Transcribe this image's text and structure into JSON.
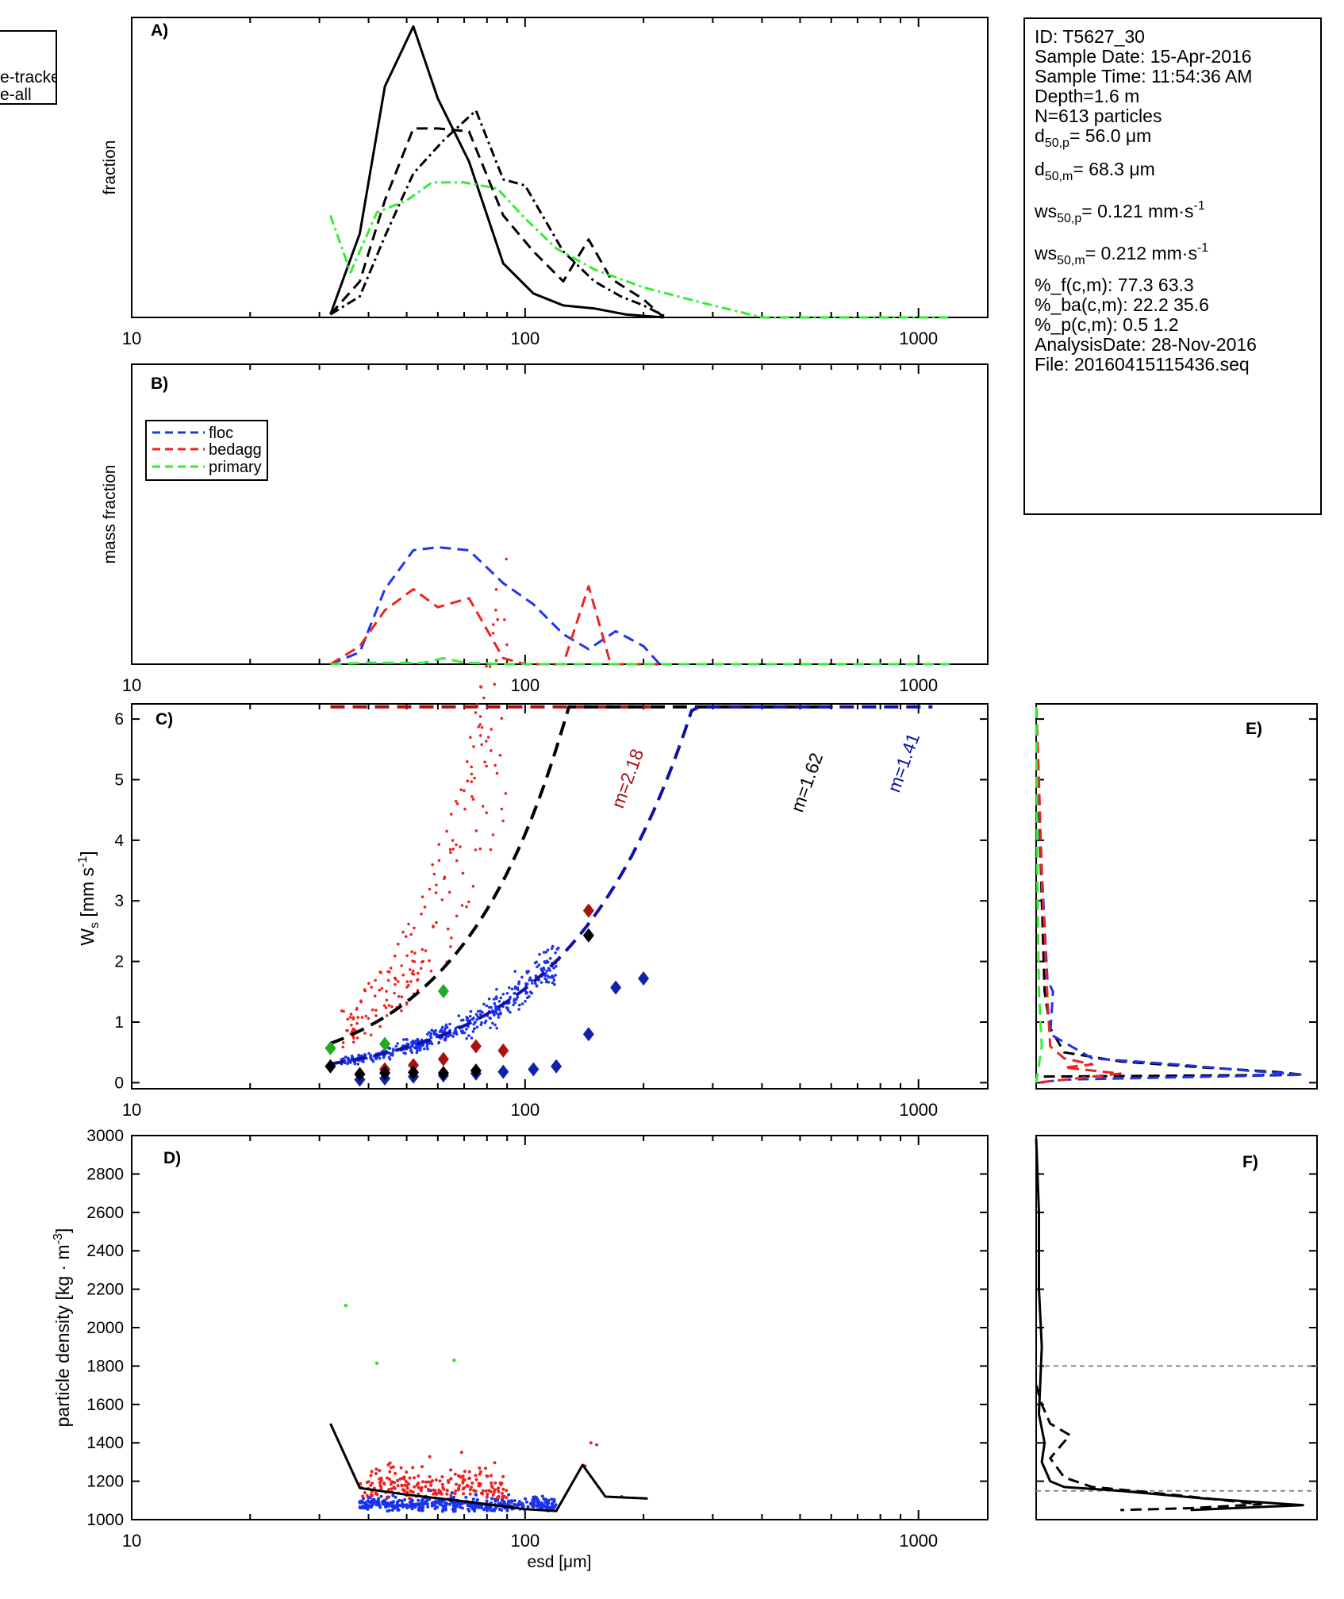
{
  "figure": {
    "top_legend": [
      "e-tracked",
      "e-all"
    ],
    "info": {
      "id": "ID: T5627_30",
      "sample_date": "Sample Date: 15-Apr-2016",
      "sample_time": "Sample Time: 11:54:36 AM",
      "depth": "Depth=1.6 m",
      "n": "N=613 particles",
      "d50p_label": "d",
      "d50p_sub": "50,p",
      "d50p_value": "=  56.0 μm",
      "d50m_label": "d",
      "d50m_sub": "50,m",
      "d50m_value": "=  68.3 μm",
      "ws50p_label": "ws",
      "ws50p_sub": "50,p",
      "ws50p_value": "= 0.121 mm·s",
      "ws50p_sup": "-1",
      "ws50m_label": "ws",
      "ws50m_sub": "50,m",
      "ws50m_value": "= 0.212 mm·s",
      "ws50m_sup": "-1",
      "pf": "%_f(c,m): 77.3 63.3",
      "pba": "%_ba(c,m): 22.2 35.6",
      "pp": "%_p(c,m): 0.5 1.2",
      "analysis_date": "AnalysisDate: 28-Nov-2016",
      "file": "File: 20160415115436.seq"
    }
  },
  "chart_data": [
    {
      "panel": "A)",
      "type": "line",
      "xscale": "log",
      "xlim": [
        10,
        1500
      ],
      "ylim": [
        0,
        1
      ],
      "xticklabels": [
        "10",
        "100",
        "1000"
      ],
      "xlabel": "",
      "ylabel": "fraction",
      "series": [
        {
          "name": "solid",
          "color": "#000000",
          "dash": "solid",
          "x": [
            32,
            38,
            44,
            52,
            60,
            72,
            88,
            105,
            125,
            150,
            180,
            225
          ],
          "y": [
            0.01,
            0.28,
            0.77,
            0.97,
            0.73,
            0.52,
            0.18,
            0.08,
            0.04,
            0.03,
            0.01,
            0.0
          ]
        },
        {
          "name": "dashed",
          "color": "#000000",
          "dash": "dashed",
          "x": [
            32,
            38,
            44,
            52,
            60,
            72,
            88,
            105,
            125,
            145,
            165,
            200,
            225
          ],
          "y": [
            0.01,
            0.12,
            0.39,
            0.63,
            0.63,
            0.62,
            0.34,
            0.22,
            0.12,
            0.26,
            0.13,
            0.06,
            0.0
          ]
        },
        {
          "name": "dashdot",
          "color": "#000000",
          "dash": "dashdot",
          "x": [
            32,
            38,
            44,
            52,
            62,
            75,
            88,
            100,
            125,
            150,
            175,
            200,
            230
          ],
          "y": [
            0.01,
            0.07,
            0.27,
            0.48,
            0.59,
            0.69,
            0.46,
            0.44,
            0.22,
            0.12,
            0.07,
            0.04,
            0.0
          ]
        },
        {
          "name": "primary",
          "color": "#33ee33",
          "dash": "dashdot",
          "x": [
            32,
            36,
            42,
            50,
            58,
            70,
            85,
            100,
            120,
            150,
            200,
            280,
            400,
            1200
          ],
          "y": [
            0.34,
            0.15,
            0.35,
            0.39,
            0.45,
            0.45,
            0.43,
            0.33,
            0.23,
            0.16,
            0.1,
            0.05,
            0.0,
            0.0
          ]
        }
      ]
    },
    {
      "panel": "B)",
      "type": "line",
      "xscale": "log",
      "xlim": [
        10,
        1500
      ],
      "ylim": [
        0,
        1
      ],
      "xticklabels": [
        "10",
        "100",
        "1000"
      ],
      "xlabel": "",
      "ylabel": "mass fraction",
      "legend": [
        "floc",
        "bedagg",
        "primary"
      ],
      "series": [
        {
          "name": "floc",
          "color": "#2233ee",
          "dash": "dashed",
          "x": [
            32,
            38,
            44,
            52,
            60,
            72,
            88,
            105,
            125,
            145,
            170,
            200,
            220
          ],
          "y": [
            0.0,
            0.04,
            0.25,
            0.38,
            0.39,
            0.38,
            0.27,
            0.2,
            0.1,
            0.05,
            0.11,
            0.06,
            0.0
          ]
        },
        {
          "name": "bedagg",
          "color": "#ee2222",
          "dash": "dashed",
          "x": [
            32,
            38,
            44,
            52,
            60,
            72,
            88,
            100,
            110,
            125,
            145,
            165,
            180,
            230
          ],
          "y": [
            0.0,
            0.06,
            0.18,
            0.25,
            0.19,
            0.22,
            0.02,
            0.0,
            0.0,
            0.0,
            0.26,
            0.0,
            0.0,
            0.0
          ]
        },
        {
          "name": "primary",
          "color": "#33ee33",
          "dash": "dashed",
          "x": [
            32,
            40,
            55,
            62,
            70,
            90,
            1200
          ],
          "y": [
            0.0,
            0.005,
            0.004,
            0.02,
            0.005,
            0.0,
            0.0
          ]
        }
      ]
    },
    {
      "panel": "C)",
      "type": "scatter",
      "xscale": "log",
      "xlim": [
        10,
        1500
      ],
      "ylim": [
        -0.1,
        6.25
      ],
      "xticklabels": [
        "10",
        "100",
        "1000"
      ],
      "yticks": [
        0,
        1,
        2,
        3,
        4,
        5,
        6
      ],
      "xlabel": "",
      "ylabel": "W_s [mm s^-1]",
      "fit_labels": [
        "m=2.18",
        "m=1.62",
        "m=1.41"
      ],
      "fits": [
        {
          "name": "m=2.18",
          "color": "#aa1111",
          "coef": 0.01165,
          "exponent": 2.18,
          "x_end": 208
        },
        {
          "name": "m=1.62",
          "color": "#000000",
          "coef": 0.00236,
          "exponent": 1.62,
          "x_end": 605
        },
        {
          "name": "m=1.41",
          "color": "#1111aa",
          "coef": 0.00235,
          "exponent": 1.41,
          "x_end": 1085
        }
      ],
      "green_diamonds": {
        "x": [
          32,
          44,
          62
        ],
        "y": [
          0.57,
          0.64,
          1.51
        ]
      },
      "black_diamonds": {
        "x": [
          32,
          38,
          44,
          52,
          62,
          75,
          145
        ],
        "y": [
          0.27,
          0.14,
          0.16,
          0.17,
          0.16,
          0.2,
          2.43
        ]
      },
      "red_diamonds": {
        "x": [
          38,
          44,
          52,
          62,
          75,
          88,
          145
        ],
        "y": [
          0.14,
          0.22,
          0.29,
          0.39,
          0.6,
          0.53,
          2.84
        ]
      },
      "blue_diamonds": {
        "x": [
          38,
          44,
          52,
          62,
          75,
          88,
          105,
          120,
          145,
          170,
          200
        ],
        "y": [
          0.05,
          0.07,
          0.1,
          0.12,
          0.15,
          0.18,
          0.22,
          0.27,
          0.8,
          1.57,
          1.72
        ]
      }
    },
    {
      "panel": "D)",
      "type": "scatter",
      "xscale": "log",
      "xlim": [
        10,
        1500
      ],
      "ylim": [
        1000,
        3000
      ],
      "xticklabels": [
        "10",
        "100",
        "1000"
      ],
      "yticks": [
        1000,
        1200,
        1400,
        1600,
        1800,
        2000,
        2200,
        2400,
        2600,
        2800,
        3000
      ],
      "xlabel": "esd [μm]",
      "ylabel": "particle density [kg · m^-3]",
      "median_line": {
        "x": [
          32,
          38,
          50,
          70,
          100,
          120,
          140,
          160,
          205
        ],
        "y": [
          1500,
          1165,
          1130,
          1095,
          1055,
          1045,
          1285,
          1120,
          1110
        ]
      },
      "green_points": {
        "x": [
          35,
          42,
          66
        ],
        "y": [
          2115,
          1815,
          1830
        ]
      }
    },
    {
      "panel": "E)",
      "type": "line",
      "ylim": [
        -0.1,
        6.25
      ],
      "xlim": [
        0,
        1
      ],
      "series": [
        {
          "name": "black-dashed",
          "color": "#000000",
          "dash": "dashed",
          "x": [
            0.0,
            0.02,
            0.03,
            0.05,
            0.1,
            0.3,
            0.6,
            0.85,
            0.95,
            0.0
          ],
          "y": [
            6.2,
            3.0,
            1.5,
            0.9,
            0.5,
            0.35,
            0.25,
            0.18,
            0.13,
            0.1
          ]
        },
        {
          "name": "blue-dashed",
          "color": "#2233ee",
          "dash": "dashed",
          "x": [
            0.0,
            0.02,
            0.04,
            0.06,
            0.05,
            0.2,
            0.5,
            0.75,
            0.95,
            0.1,
            0.0
          ],
          "y": [
            6.2,
            3.5,
            1.7,
            1.5,
            0.8,
            0.4,
            0.3,
            0.2,
            0.13,
            0.05,
            0.0
          ]
        },
        {
          "name": "red-dashed",
          "color": "#ee2222",
          "dash": "dashed",
          "x": [
            0.0,
            0.01,
            0.02,
            0.03,
            0.04,
            0.05,
            0.1,
            0.2,
            0.1,
            0.3,
            0.0
          ],
          "y": [
            6.2,
            5.0,
            3.3,
            2.5,
            1.4,
            0.6,
            0.4,
            0.3,
            0.25,
            0.15,
            0.0
          ]
        },
        {
          "name": "green-dashed",
          "color": "#33ee33",
          "dash": "dashed",
          "x": [
            0.0,
            0.005,
            0.01,
            0.02,
            0.01,
            0.0
          ],
          "y": [
            6.2,
            3.0,
            1.5,
            0.6,
            0.3,
            0.0
          ]
        }
      ]
    },
    {
      "panel": "F)",
      "type": "line",
      "ylim": [
        1000,
        3000
      ],
      "xlim": [
        0,
        1
      ],
      "hlines": [
        1800,
        1150
      ],
      "series": [
        {
          "name": "solid",
          "color": "#000000",
          "dash": "solid",
          "x": [
            0.0,
            0.01,
            0.01,
            0.02,
            0.01,
            0.03,
            0.02,
            0.05,
            0.1,
            0.3,
            0.6,
            0.95,
            0.55
          ],
          "y": [
            2985,
            2600,
            2200,
            1900,
            1550,
            1400,
            1300,
            1200,
            1170,
            1150,
            1110,
            1075,
            1050
          ]
        },
        {
          "name": "dashed",
          "color": "#000000",
          "dash": "dashed",
          "x": [
            0.0,
            0.02,
            0.05,
            0.12,
            0.05,
            0.1,
            0.2,
            0.35,
            0.55,
            0.8,
            0.55,
            0.3
          ],
          "y": [
            1700,
            1600,
            1500,
            1440,
            1320,
            1220,
            1170,
            1150,
            1120,
            1080,
            1060,
            1050
          ]
        }
      ]
    }
  ]
}
